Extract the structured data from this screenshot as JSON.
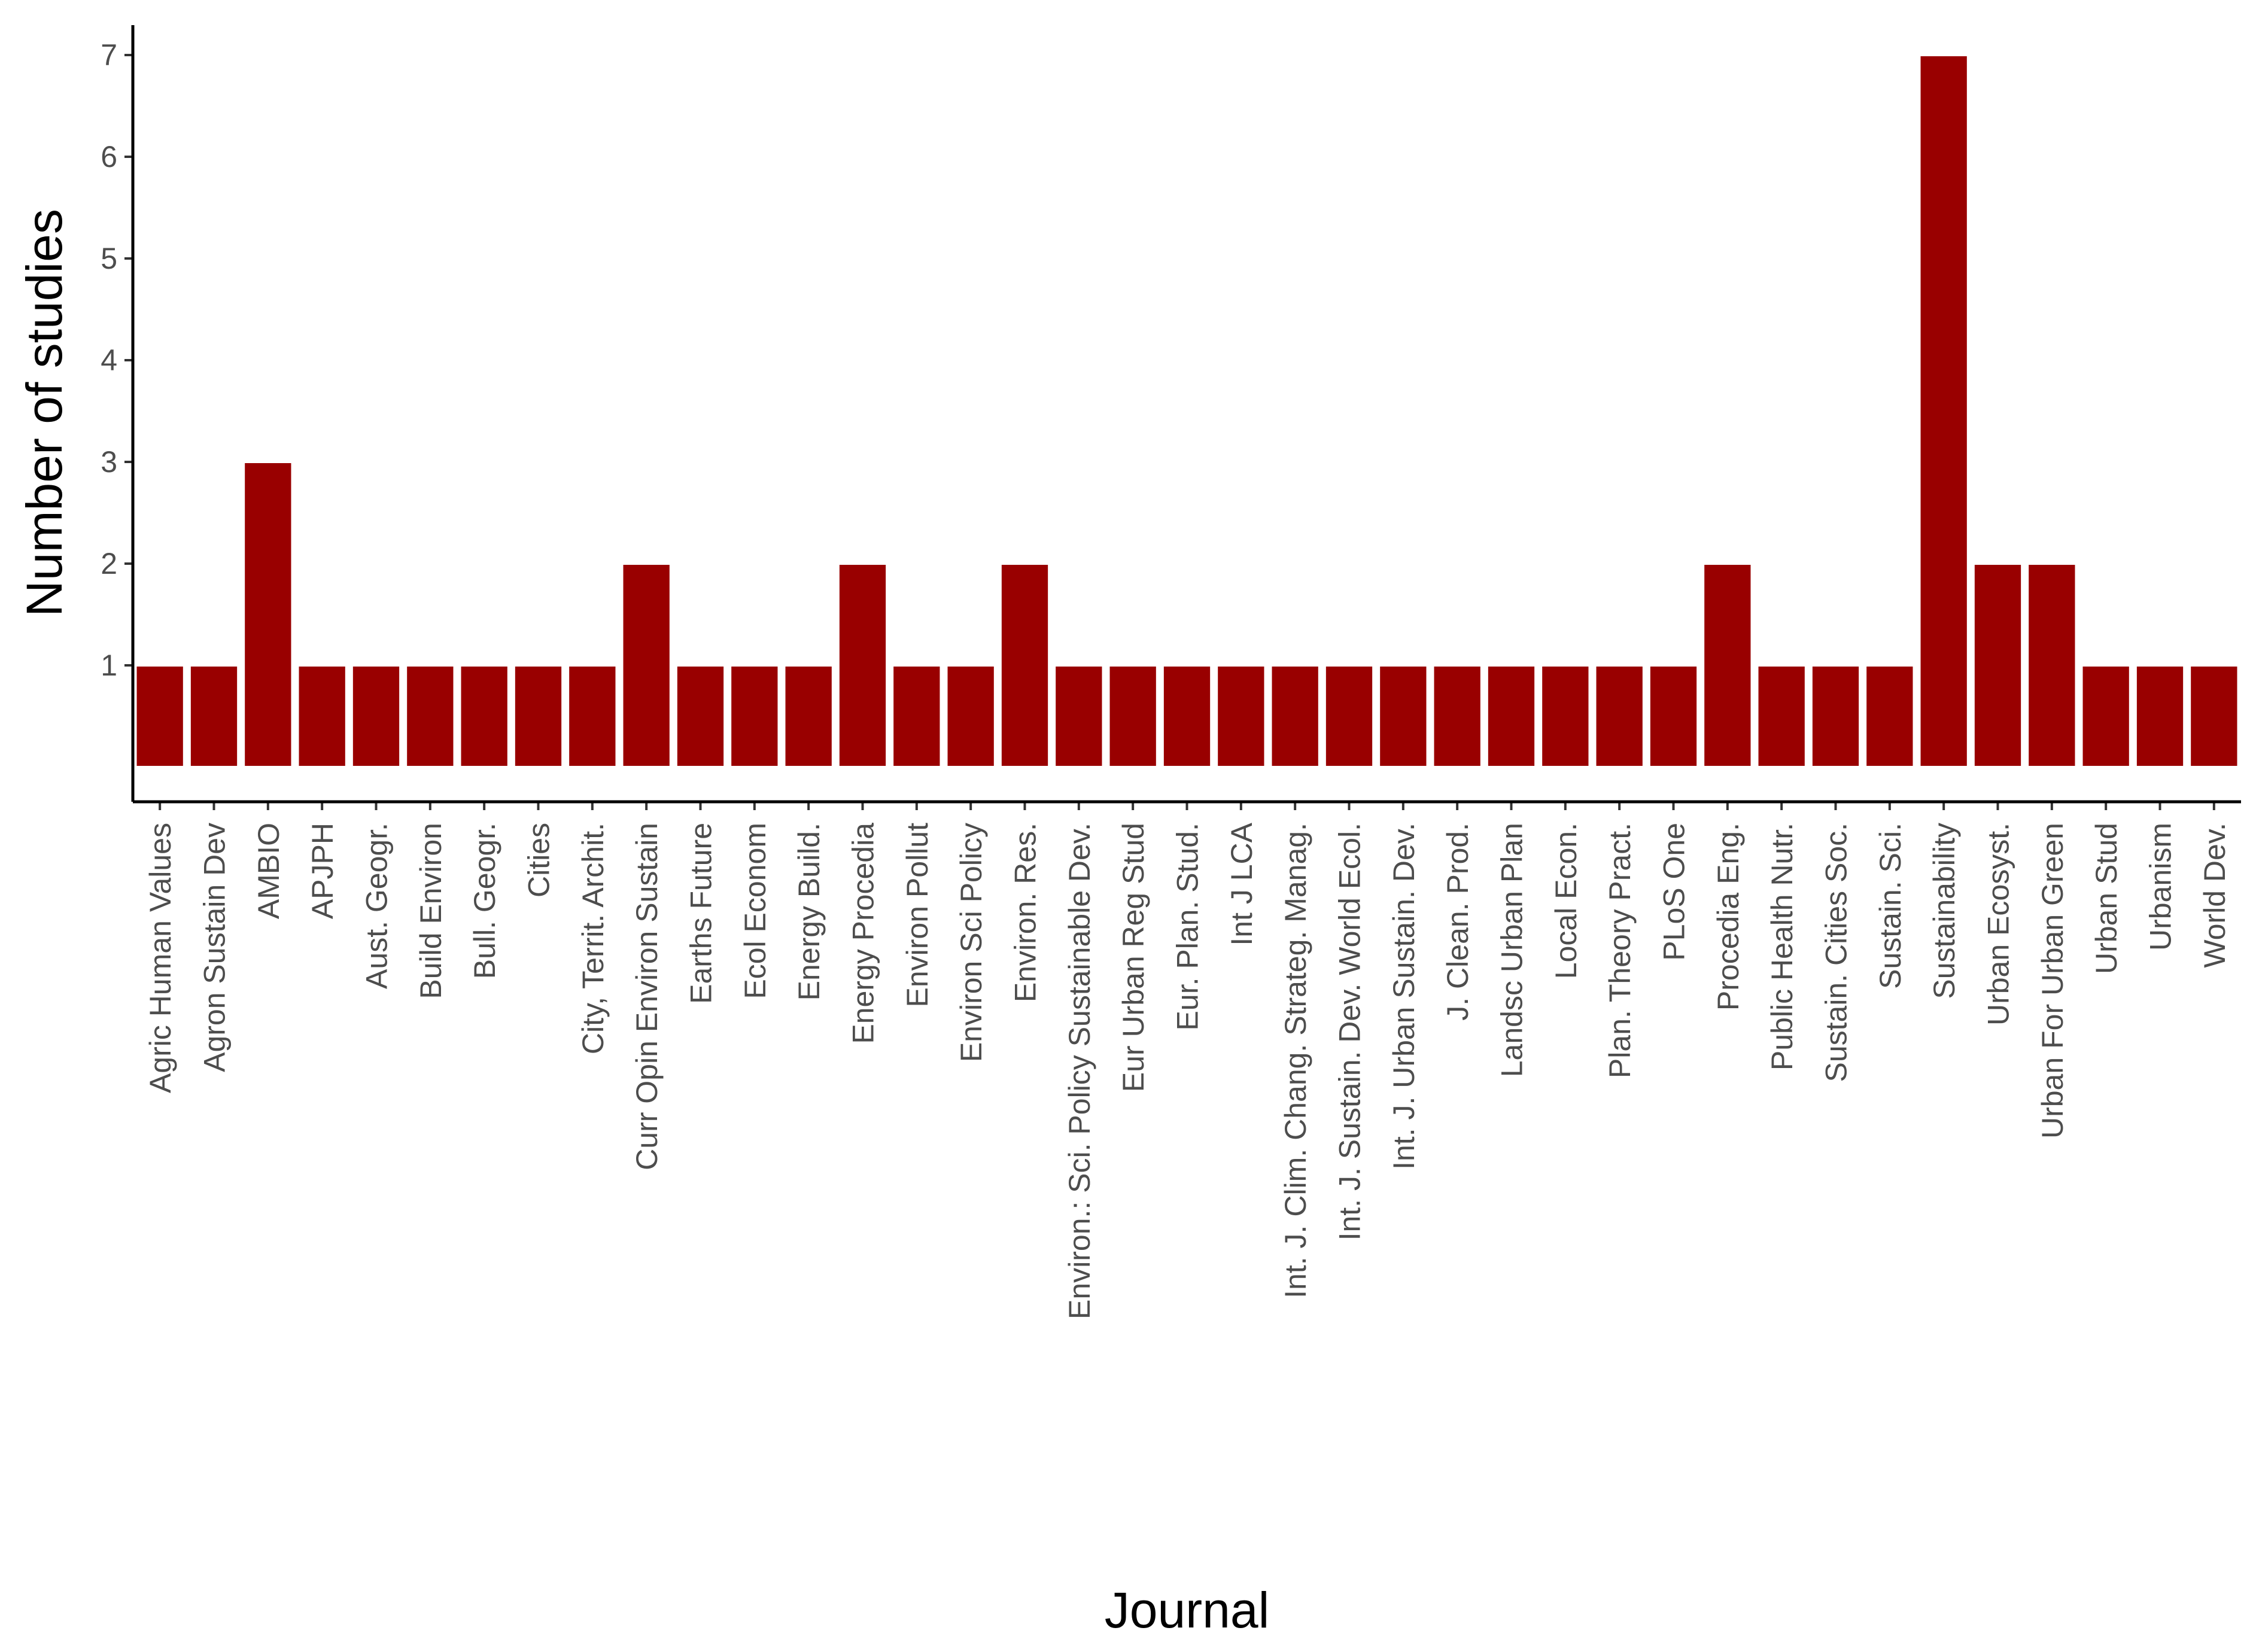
{
  "chart_data": {
    "type": "bar",
    "xlabel": "Journal",
    "ylabel": "Number of studies",
    "bar_color": "#990000",
    "yticks": [
      1,
      2,
      3,
      4,
      5,
      6,
      7
    ],
    "ylim": [
      0,
      7.35
    ],
    "grid": false,
    "categories": [
      "Agric Human Values",
      "Agron Sustain Dev",
      "AMBIO",
      "APJPH",
      "Aust. Geogr.",
      "Build Environ",
      "Bull. Geogr.",
      "Cities",
      "City, Territ. Archit.",
      "Curr Opin Environ Sustain",
      "Earths Future",
      "Ecol Econom",
      "Energy Build.",
      "Energy Procedia",
      "Environ Pollut",
      "Environ Sci Policy",
      "Environ. Res.",
      "Environ.: Sci. Policy Sustainable Dev.",
      "Eur Urban Reg Stud",
      "Eur. Plan. Stud.",
      "Int J LCA",
      "Int. J. Clim. Chang. Strateg. Manag.",
      "Int. J. Sustain. Dev. World Ecol.",
      "Int. J. Urban Sustain. Dev.",
      "J. Clean. Prod.",
      "Landsc Urban Plan",
      "Local Econ.",
      "Plan. Theory Pract.",
      "PLoS One",
      "Procedia Eng.",
      "Public Health Nutr.",
      "Sustain. Cities Soc.",
      "Sustain. Sci.",
      "Sustainability",
      "Urban Ecosyst.",
      "Urban For Urban Green",
      "Urban Stud",
      "Urbanism",
      "World Dev."
    ],
    "values": [
      1,
      1,
      3,
      1,
      1,
      1,
      1,
      1,
      1,
      2,
      1,
      1,
      1,
      2,
      1,
      1,
      2,
      1,
      1,
      1,
      1,
      1,
      1,
      1,
      1,
      1,
      1,
      1,
      1,
      2,
      1,
      1,
      1,
      7,
      2,
      2,
      1,
      1,
      1
    ]
  }
}
